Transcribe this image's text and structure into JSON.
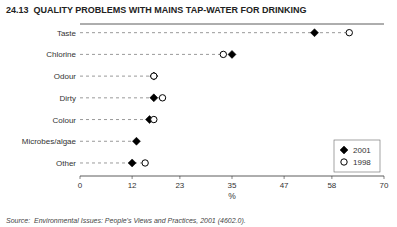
{
  "chart_data": {
    "type": "dot",
    "orientation": "horizontal",
    "title": "24.13  QUALITY PROBLEMS WITH MAINS TAP-WATER FOR DRINKING",
    "categories": [
      "Taste",
      "Chlorine",
      "Odour",
      "Dirty",
      "Colour",
      "Microbes/algae",
      "Other"
    ],
    "series": [
      {
        "name": "2001",
        "color": "#000000",
        "marker": "diamond",
        "values": [
          54,
          35,
          17,
          17,
          16,
          13,
          12
        ]
      },
      {
        "name": "1998",
        "color": "#000000",
        "marker": "circle",
        "values": [
          62,
          33,
          17,
          19,
          17,
          null,
          15
        ]
      }
    ],
    "x_label": "%",
    "xlim": [
      0,
      70
    ],
    "xticks": [
      0,
      12,
      23,
      35,
      47,
      58,
      70
    ],
    "grid": false,
    "legend": "lower right",
    "annotations": [
      "Source:  Environmental Issues: People's Views and Practices, 2001 (4602.0)."
    ]
  }
}
